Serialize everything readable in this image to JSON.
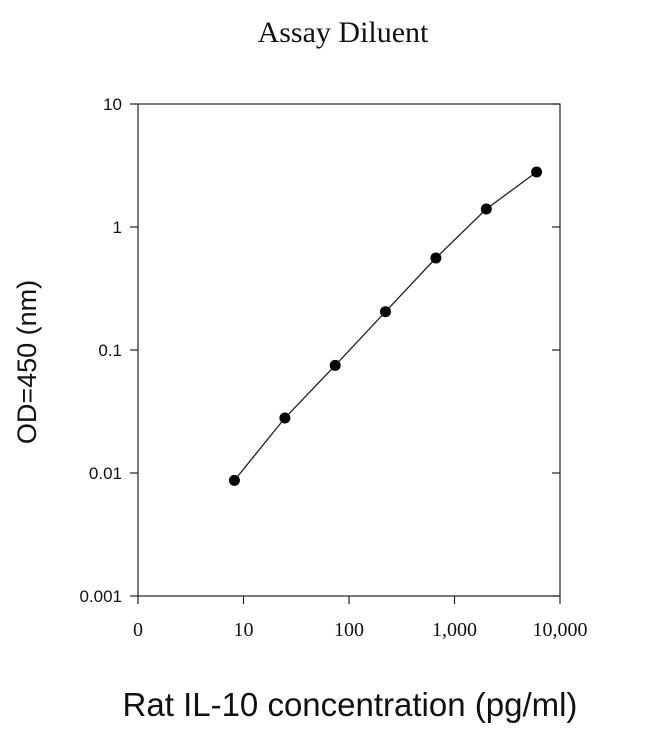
{
  "chart_data": {
    "type": "line",
    "title": "Assay Diluent",
    "xlabel": "Rat IL-10 concentration (pg/ml)",
    "ylabel": "OD=450 (nm)",
    "xscale": "log",
    "yscale": "log",
    "xlim": [
      1,
      10000
    ],
    "ylim": [
      0.001,
      10
    ],
    "x_tick_labels": [
      "0",
      "10",
      "100",
      "1,000",
      "10,000"
    ],
    "y_tick_labels": [
      "10",
      "1",
      "0.1",
      "0.01",
      "0.001"
    ],
    "grid": false,
    "legend": "none",
    "series": [
      {
        "x": [
          8.2,
          24.7,
          74,
          222,
          667,
          2000,
          6000
        ],
        "y": [
          0.0087,
          0.028,
          0.075,
          0.205,
          0.56,
          1.4,
          2.8
        ]
      }
    ]
  }
}
